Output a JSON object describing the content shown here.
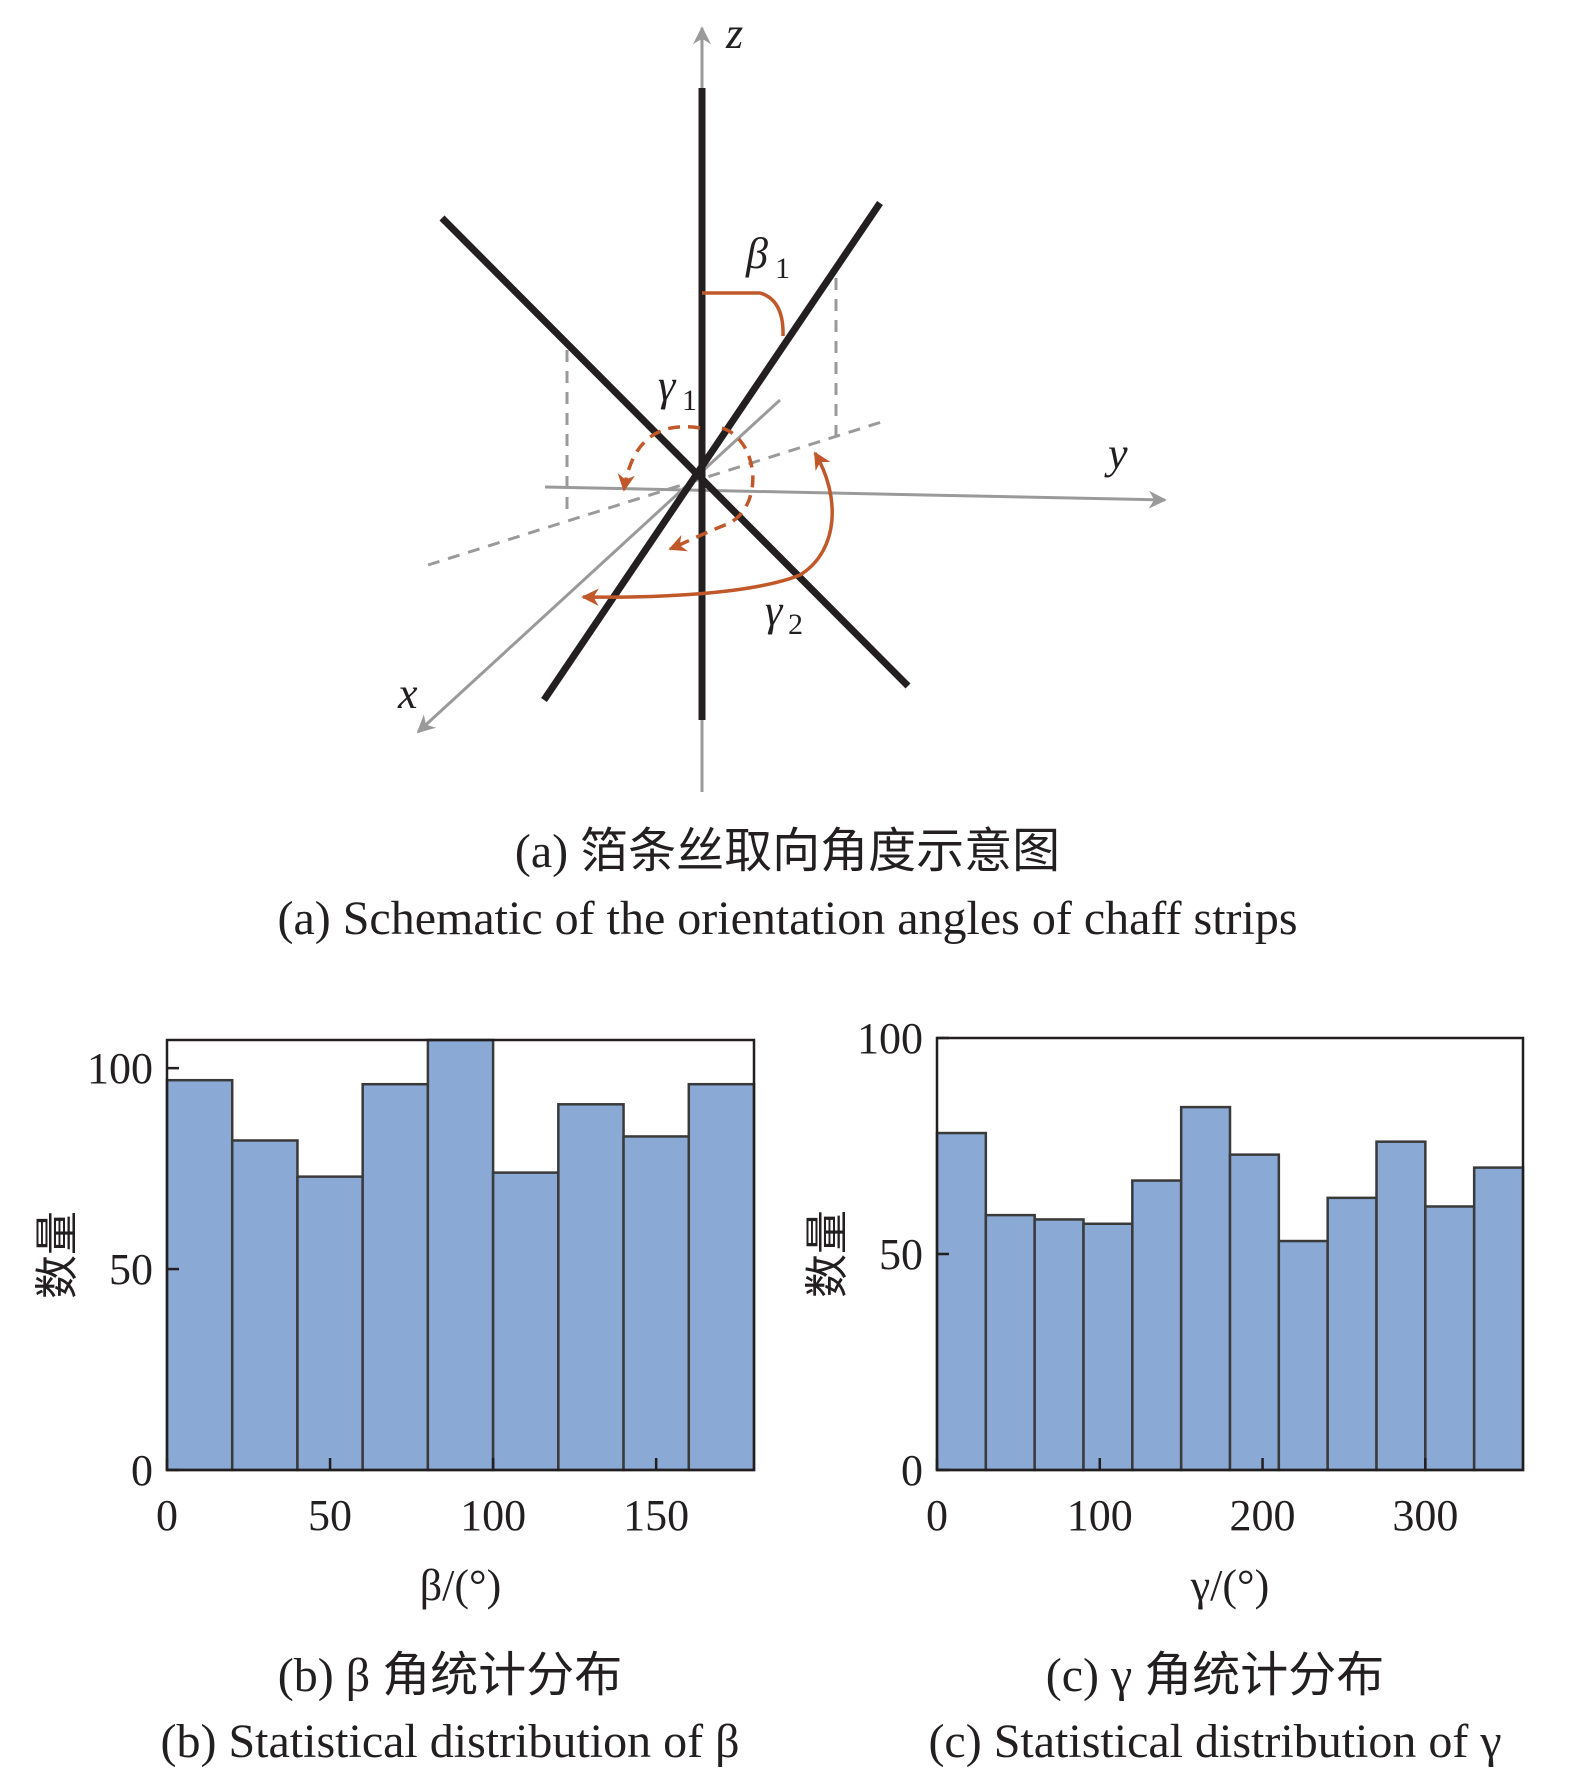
{
  "diagram": {
    "axis_z": "z",
    "axis_y": "y",
    "axis_x": "x",
    "beta_symbol": "β",
    "beta_subscript": "1",
    "gamma1_symbol": "γ",
    "gamma1_subscript": "1",
    "gamma2_symbol": "γ",
    "gamma2_subscript": "2",
    "colors": {
      "strip": "#231f20",
      "axis": "#9a9a9a",
      "arrow": "#c0582a"
    }
  },
  "captions": {
    "a_cn": "(a) 箔条丝取向角度示意图",
    "a_en": "(a) Schematic of the orientation angles of chaff strips",
    "b_cn": "(b) β 角统计分布",
    "b_en": "(b) Statistical distribution of β",
    "c_cn": "(c) γ 角统计分布",
    "c_en": "(c) Statistical distribution of γ"
  },
  "chart_data": [
    {
      "type": "bar",
      "xlabel": "β/(°)",
      "ylabel": "数量",
      "xlim": [
        0,
        180
      ],
      "ylim": [
        0,
        107
      ],
      "xticks": [
        0,
        50,
        100,
        150
      ],
      "yticks": [
        0,
        50,
        100
      ],
      "bin_edges": [
        0,
        20,
        40,
        60,
        80,
        100,
        120,
        140,
        160,
        180
      ],
      "values": [
        97,
        82,
        73,
        96,
        107,
        74,
        91,
        83,
        96
      ],
      "bar_color": "#8aa9d4"
    },
    {
      "type": "bar",
      "xlabel": "γ/(°)",
      "ylabel": "数量",
      "xlim": [
        0,
        360
      ],
      "ylim": [
        0,
        100
      ],
      "xticks": [
        0,
        100,
        200,
        300
      ],
      "yticks": [
        0,
        50,
        100
      ],
      "bin_edges": [
        0,
        30,
        60,
        90,
        120,
        150,
        180,
        210,
        240,
        270,
        300,
        330,
        360
      ],
      "values": [
        78,
        59,
        58,
        57,
        67,
        84,
        73,
        53,
        63,
        76,
        61,
        70
      ],
      "bar_color": "#8aa9d4"
    }
  ]
}
